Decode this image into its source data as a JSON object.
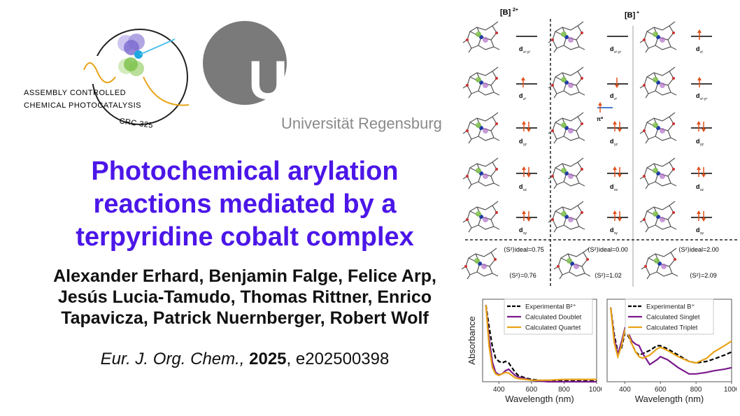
{
  "crc_logo": {
    "line1": "ASSEMBLY CONTROLLED",
    "line2": "CHEMICAL PHOTOCATALYSIS",
    "badge": "CRC 325"
  },
  "ur_logo": {
    "letters": "UR",
    "name": "Universität Regensburg"
  },
  "title": "Photochemical arylation reactions mediated by a terpyridine cobalt complex",
  "authors": "Alexander Erhard, Benjamin Falge, Felice Arp, Jesús Lucia-Tamudo, Thomas Rittner, Enrico Tapavicza, Patrick Nuernberger, Robert Wolf",
  "citation": {
    "journal": "Eur. J. Org. Chem.,",
    "year": "2025",
    "article": ", e202500398"
  },
  "mo_diagram": {
    "header_left": "[B]",
    "header_left_sup": "2+",
    "header_right": "[B]",
    "header_right_sup": "+",
    "col1_labels": [
      "d",
      "d",
      "d",
      "d",
      "d"
    ],
    "col1_subs": [
      "x²-y²",
      "z²",
      "yz",
      "xz",
      "xy"
    ],
    "col2_subs": [
      "x²-y²",
      "z²",
      "yz",
      "xz",
      "xy"
    ],
    "col3_subs": [
      "z²",
      "x²-y²",
      "yz",
      "xz",
      "xy"
    ],
    "pi_star": "π*",
    "s2_ideal_1": "⟨S²⟩ideal=0.75",
    "s2_1": "⟨S²⟩=0.76",
    "s2_ideal_2": "⟨S²⟩ideal=0.00",
    "s2_2": "⟨S²⟩=1.02",
    "s2_ideal_3": "⟨S²⟩ideal=2.00",
    "s2_3": "⟨S²⟩=2.09"
  },
  "chart_data": [
    {
      "type": "line",
      "xlabel": "Wavelength (nm)",
      "ylabel": "Absorbance",
      "xlim": [
        300,
        1000
      ],
      "xticks": [
        "400",
        "600",
        "800",
        "1000"
      ],
      "series": [
        {
          "name": "Experimental B²⁺",
          "color": "#000000",
          "dash": true,
          "x": [
            320,
            340,
            360,
            380,
            400,
            420,
            440,
            460,
            480,
            500,
            520,
            560,
            600,
            650,
            700,
            800,
            900,
            1000
          ],
          "y": [
            0.98,
            0.7,
            0.45,
            0.3,
            0.26,
            0.24,
            0.26,
            0.24,
            0.18,
            0.12,
            0.08,
            0.05,
            0.03,
            0.02,
            0.01,
            0.01,
            0.01,
            0.01
          ]
        },
        {
          "name": "Calculated Doublet",
          "color": "#7a1a8c",
          "dash": false,
          "x": [
            320,
            340,
            360,
            380,
            400,
            420,
            440,
            460,
            480,
            500,
            520,
            560,
            600,
            650,
            700,
            800,
            900,
            1000
          ],
          "y": [
            0.98,
            0.55,
            0.25,
            0.12,
            0.09,
            0.1,
            0.14,
            0.16,
            0.12,
            0.08,
            0.06,
            0.04,
            0.02,
            0.01,
            0.0,
            0.0,
            0.0,
            0.0
          ]
        },
        {
          "name": "Calculated Quartet",
          "color": "#e8a317",
          "dash": false,
          "x": [
            320,
            340,
            360,
            380,
            400,
            420,
            440,
            460,
            480,
            500,
            520,
            560,
            600,
            650,
            700,
            800,
            900,
            1000
          ],
          "y": [
            0.98,
            0.45,
            0.18,
            0.1,
            0.08,
            0.1,
            0.12,
            0.11,
            0.08,
            0.05,
            0.04,
            0.03,
            0.02,
            0.02,
            0.02,
            0.03,
            0.03,
            0.03
          ]
        }
      ]
    },
    {
      "type": "line",
      "xlabel": "Wavelength (nm)",
      "ylabel": "",
      "xlim": [
        300,
        1000
      ],
      "xticks": [
        "400",
        "600",
        "800",
        "1000"
      ],
      "series": [
        {
          "name": "Experimental B⁺",
          "color": "#000000",
          "dash": true,
          "x": [
            320,
            340,
            360,
            380,
            400,
            420,
            440,
            460,
            480,
            500,
            540,
            580,
            600,
            640,
            700,
            760,
            800,
            860,
            900,
            960,
            1000
          ],
          "y": [
            0.95,
            0.6,
            0.38,
            0.42,
            0.62,
            0.58,
            0.48,
            0.38,
            0.34,
            0.36,
            0.4,
            0.46,
            0.46,
            0.42,
            0.34,
            0.26,
            0.24,
            0.26,
            0.29,
            0.34,
            0.38
          ]
        },
        {
          "name": "Calculated Singlet",
          "color": "#7a1a8c",
          "dash": false,
          "x": [
            320,
            340,
            360,
            380,
            400,
            420,
            440,
            460,
            480,
            500,
            540,
            580,
            600,
            640,
            700,
            760,
            800,
            860,
            900,
            960,
            1000
          ],
          "y": [
            0.95,
            0.55,
            0.35,
            0.5,
            0.68,
            0.62,
            0.52,
            0.48,
            0.46,
            0.36,
            0.22,
            0.28,
            0.32,
            0.28,
            0.18,
            0.1,
            0.1,
            0.12,
            0.14,
            0.16,
            0.18
          ]
        },
        {
          "name": "Calculated Triplet",
          "color": "#e8a317",
          "dash": false,
          "x": [
            320,
            340,
            360,
            380,
            400,
            420,
            440,
            460,
            480,
            500,
            540,
            580,
            600,
            640,
            700,
            760,
            800,
            860,
            900,
            960,
            1000
          ],
          "y": [
            0.95,
            0.5,
            0.32,
            0.45,
            0.66,
            0.6,
            0.48,
            0.38,
            0.32,
            0.3,
            0.34,
            0.42,
            0.44,
            0.4,
            0.32,
            0.26,
            0.24,
            0.3,
            0.38,
            0.46,
            0.52
          ]
        }
      ]
    }
  ]
}
